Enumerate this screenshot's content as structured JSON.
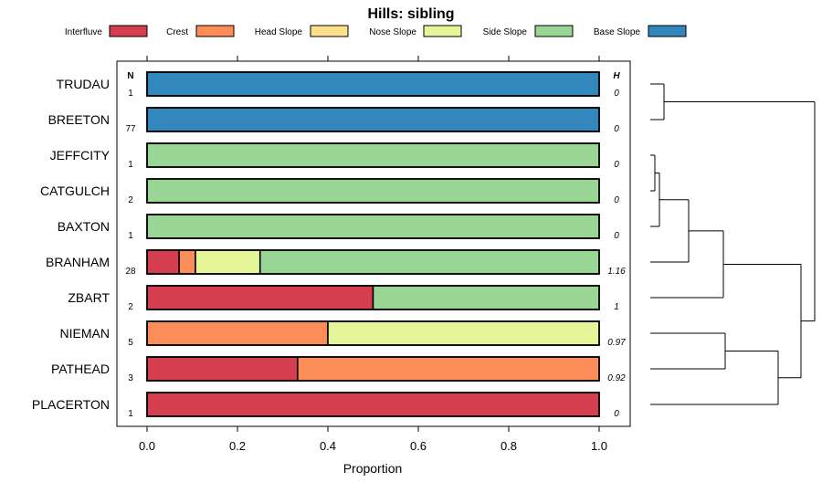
{
  "chart_data": {
    "type": "bar",
    "orientation": "horizontal",
    "stacked": true,
    "title": "Hills: sibling",
    "xlabel": "Proportion",
    "ylabel": "",
    "xlim": [
      0,
      1
    ],
    "xticks": [
      "0.0",
      "0.2",
      "0.4",
      "0.6",
      "0.8",
      "1.0"
    ],
    "xtick_values": [
      0,
      0.2,
      0.4,
      0.6,
      0.8,
      1.0
    ],
    "legend_position": "top",
    "n_header": "N",
    "h_header": "H",
    "categories": [
      "TRUDAU",
      "BREETON",
      "JEFFCITY",
      "CATGULCH",
      "BAXTON",
      "BRANHAM",
      "ZBART",
      "NIEMAN",
      "PATHEAD",
      "PLACERTON"
    ],
    "n": [
      "1",
      "77",
      "1",
      "2",
      "1",
      "28",
      "2",
      "5",
      "3",
      "1"
    ],
    "h": [
      "0",
      "0",
      "0",
      "0",
      "0",
      "1.16",
      "1",
      "0.97",
      "0.92",
      "0"
    ],
    "series": [
      {
        "name": "Interfluve",
        "color": "#d53e4f",
        "values": [
          0,
          0,
          0,
          0,
          0,
          0.071,
          0.5,
          0,
          0.333,
          1.0
        ]
      },
      {
        "name": "Crest",
        "color": "#fc8d59",
        "values": [
          0,
          0,
          0,
          0,
          0,
          0.036,
          0,
          0.4,
          0.667,
          0
        ]
      },
      {
        "name": "Head Slope",
        "color": "#fee08b",
        "values": [
          0,
          0,
          0,
          0,
          0,
          0,
          0,
          0,
          0,
          0
        ]
      },
      {
        "name": "Nose Slope",
        "color": "#e6f598",
        "values": [
          0,
          0,
          0,
          0,
          0,
          0.143,
          0,
          0.6,
          0,
          0
        ]
      },
      {
        "name": "Side Slope",
        "color": "#99d594",
        "values": [
          0,
          0,
          1.0,
          1.0,
          1.0,
          0.75,
          0.5,
          0,
          0,
          0
        ]
      },
      {
        "name": "Base Slope",
        "color": "#3288bd",
        "values": [
          1.0,
          1.0,
          0,
          0,
          0,
          0,
          0,
          0,
          0,
          0
        ]
      }
    ],
    "dendrogram": {
      "description": "hierarchical clustering of the rows",
      "merges": [
        [
          0,
          1,
          0.15
        ],
        [
          2,
          3,
          0.05
        ],
        [
          "m1",
          4,
          0.1
        ],
        [
          "m2",
          5,
          0.42
        ],
        [
          "m3",
          6,
          0.8
        ],
        [
          7,
          8,
          0.82
        ],
        [
          "m5",
          9,
          1.4
        ],
        [
          "m4",
          "m6",
          1.65
        ],
        [
          "m0",
          "m7",
          1.8
        ]
      ]
    }
  }
}
